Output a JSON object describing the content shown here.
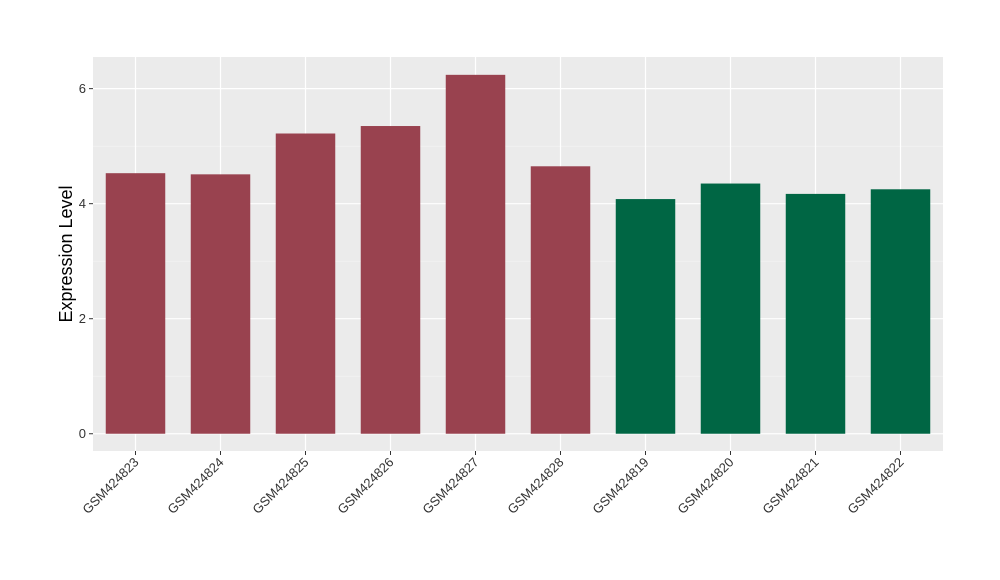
{
  "chart_data": {
    "type": "bar",
    "title": "",
    "xlabel": "",
    "ylabel": "Expression Level",
    "ylim": [
      -0.3,
      6.55
    ],
    "yticks": [
      0,
      2,
      4,
      6
    ],
    "grid": true,
    "panel_background": "#ebebeb",
    "categories": [
      "GSM424823",
      "GSM424824",
      "GSM424825",
      "GSM424826",
      "GSM424827",
      "GSM424828",
      "GSM424819",
      "GSM424820",
      "GSM424821",
      "GSM424822"
    ],
    "values": [
      4.53,
      4.51,
      5.22,
      5.35,
      6.24,
      4.65,
      4.08,
      4.35,
      4.17,
      4.25
    ],
    "bar_colors": [
      "#99424f",
      "#99424f",
      "#99424f",
      "#99424f",
      "#99424f",
      "#99424f",
      "#006644",
      "#006644",
      "#006644",
      "#006644"
    ]
  }
}
